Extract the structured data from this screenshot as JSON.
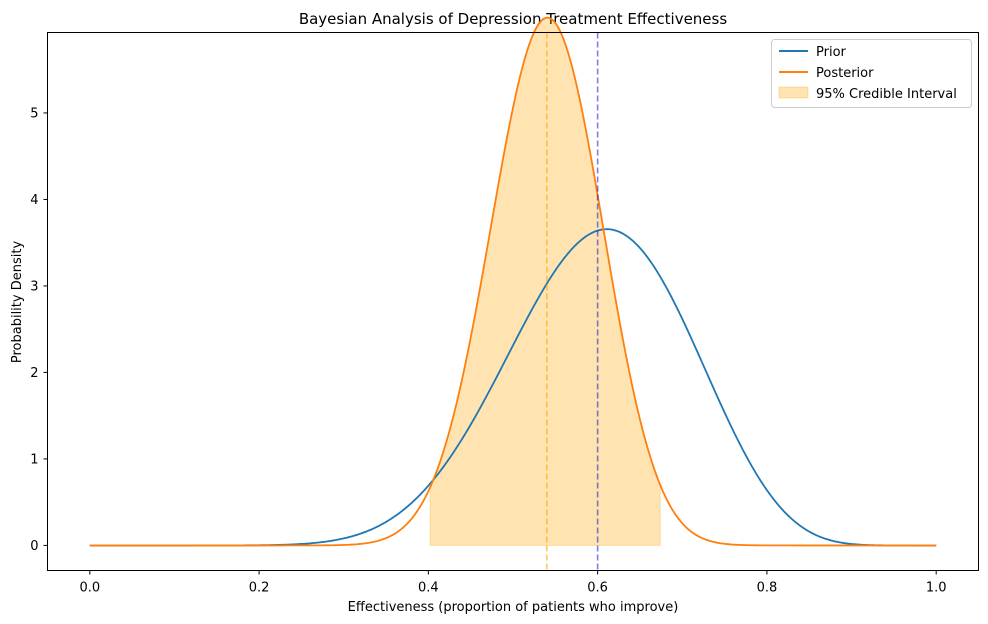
{
  "chart_data": {
    "type": "line",
    "title": "Bayesian Analysis of Depression Treatment Effectiveness",
    "xlabel": "Effectiveness (proportion of patients who improve)",
    "ylabel": "Probability Density",
    "xlim": [
      -0.05,
      1.05
    ],
    "ylim": [
      -0.29,
      5.93
    ],
    "xticks": [
      0.0,
      0.2,
      0.4,
      0.6,
      0.8,
      1.0
    ],
    "xtick_labels": [
      "0.0",
      "0.2",
      "0.4",
      "0.6",
      "0.8",
      "1.0"
    ],
    "yticks": [
      0,
      1,
      2,
      3,
      4,
      5
    ],
    "ytick_labels": [
      "0",
      "1",
      "2",
      "3",
      "4",
      "5"
    ],
    "legend_position": "top-right",
    "series": [
      {
        "name": "Prior",
        "color": "#1f77b4",
        "distribution": "beta",
        "alpha": 12.3,
        "beta": 8.2
      },
      {
        "name": "Posterior",
        "color": "#ff7f0e",
        "distribution": "beta",
        "alpha": 31.6,
        "beta": 27.0
      }
    ],
    "credible_interval": {
      "name": "95% Credible Interval",
      "lower": 0.402,
      "upper": 0.674,
      "color": "#ffa500",
      "opacity": 0.3
    },
    "reference_lines": [
      {
        "x": 0.54,
        "color": "#ffa500",
        "style": "dashed",
        "opacity": 0.6
      },
      {
        "x": 0.6,
        "color": "#0000cd",
        "style": "dashed",
        "opacity": 0.5
      }
    ]
  }
}
